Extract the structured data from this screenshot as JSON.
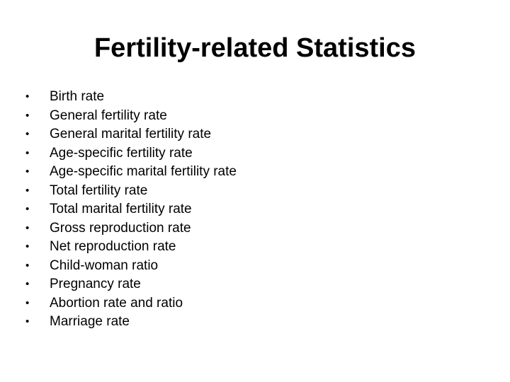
{
  "slide": {
    "title": "Fertility-related Statistics",
    "bullet_glyph": "•",
    "items": [
      "Birth rate",
      "General fertility rate",
      "General marital fertility rate",
      "Age-specific fertility rate",
      "Age-specific marital fertility rate",
      "Total fertility rate",
      "Total marital fertility rate",
      "Gross reproduction rate",
      "Net reproduction rate",
      "Child-woman ratio",
      "Pregnancy rate",
      "Abortion rate and ratio",
      "Marriage rate"
    ]
  }
}
